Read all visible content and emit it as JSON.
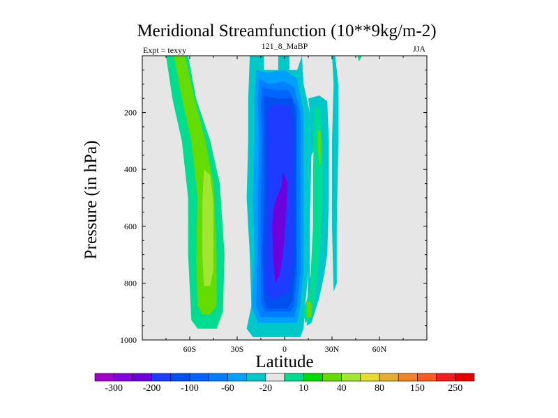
{
  "chart_data": {
    "type": "contour",
    "title": "Meridional Streamfunction (10**9kg/m-2)",
    "left_label": "Expt = texyy",
    "center_label": "121_8_MaBP",
    "right_label": "JJA",
    "xlabel": "Latitude",
    "ylabel": "Pressure (in hPa)",
    "xlim": [
      -90,
      90
    ],
    "ylim": [
      1000,
      0
    ],
    "x_ticks": [
      {
        "value": -60,
        "label": "60S"
      },
      {
        "value": -30,
        "label": "30S"
      },
      {
        "value": 0,
        "label": "0"
      },
      {
        "value": 30,
        "label": "30N"
      },
      {
        "value": 60,
        "label": "60N"
      }
    ],
    "y_ticks": [
      {
        "value": 200,
        "label": "200"
      },
      {
        "value": 400,
        "label": "400"
      },
      {
        "value": 600,
        "label": "600"
      },
      {
        "value": 800,
        "label": "800"
      },
      {
        "value": 1000,
        "label": "1000"
      }
    ],
    "colorbar": {
      "colors": [
        "#a000c8",
        "#8200dc",
        "#6e00dc",
        "#1e3cff",
        "#0050f0",
        "#0064ff",
        "#0080ff",
        "#00a0ff",
        "#00c8c8",
        "#e6e6e6",
        "#00dc90",
        "#00dc00",
        "#64dc00",
        "#a0e632",
        "#e6dc32",
        "#e6af2d",
        "#f08228",
        "#fa5a1e",
        "#f01e1e",
        "#e60000"
      ],
      "tick_labels": [
        "-300",
        "-200",
        "-100",
        "-60",
        "-20",
        "10",
        "40",
        "80",
        "150",
        "250"
      ]
    },
    "regions": [
      {
        "level": 40,
        "color": "#00dc90",
        "points": [
          [
            -75,
            0
          ],
          [
            -61,
            0
          ],
          [
            -56,
            150
          ],
          [
            -47,
            300
          ],
          [
            -41,
            450
          ],
          [
            -38,
            700
          ],
          [
            -39,
            900
          ],
          [
            -43,
            960
          ],
          [
            -55,
            960
          ],
          [
            -59,
            930
          ],
          [
            -61,
            700
          ],
          [
            -61,
            500
          ],
          [
            -65,
            300
          ],
          [
            -71,
            150
          ]
        ]
      },
      {
        "level": 80,
        "color": "#64dc00",
        "points": [
          [
            -70,
            0
          ],
          [
            -63,
            0
          ],
          [
            -57,
            150
          ],
          [
            -50,
            300
          ],
          [
            -45,
            450
          ],
          [
            -43,
            700
          ],
          [
            -43,
            880
          ],
          [
            -47,
            910
          ],
          [
            -52,
            910
          ],
          [
            -55,
            880
          ],
          [
            -56,
            700
          ],
          [
            -55,
            500
          ],
          [
            -59,
            300
          ],
          [
            -65,
            150
          ]
        ]
      },
      {
        "level": 150,
        "color": "#a0e632",
        "points": [
          [
            -51,
            400
          ],
          [
            -47,
            420
          ],
          [
            -45,
            520
          ],
          [
            -45,
            750
          ],
          [
            -47,
            810
          ],
          [
            -51,
            810
          ],
          [
            -52,
            700
          ],
          [
            -52,
            520
          ]
        ]
      },
      {
        "level": -20,
        "color": "#00c8c8",
        "points": [
          [
            -22,
            0
          ],
          [
            -13,
            0
          ],
          [
            -13,
            50
          ],
          [
            -4,
            50
          ],
          [
            -4,
            0
          ],
          [
            3,
            0
          ],
          [
            3,
            50
          ],
          [
            8,
            50
          ],
          [
            11,
            0
          ],
          [
            12,
            100
          ],
          [
            16,
            200
          ],
          [
            15,
            450
          ],
          [
            15,
            760
          ],
          [
            13,
            880
          ],
          [
            12,
            960
          ],
          [
            10,
            990
          ],
          [
            -20,
            990
          ],
          [
            -24,
            960
          ],
          [
            -21,
            880
          ],
          [
            -22,
            700
          ],
          [
            -24,
            500
          ],
          [
            -23,
            300
          ],
          [
            -23,
            150
          ]
        ]
      },
      {
        "level": -60,
        "color": "#00a0ff",
        "points": [
          [
            -18,
            50
          ],
          [
            -11,
            60
          ],
          [
            0,
            50
          ],
          [
            8,
            80
          ],
          [
            12,
            200
          ],
          [
            12,
            450
          ],
          [
            12,
            760
          ],
          [
            10,
            880
          ],
          [
            8,
            940
          ],
          [
            -17,
            940
          ],
          [
            -21,
            880
          ],
          [
            -19,
            700
          ],
          [
            -20,
            500
          ],
          [
            -19,
            300
          ],
          [
            -19,
            150
          ]
        ]
      },
      {
        "level": -100,
        "color": "#0080ff",
        "points": [
          [
            -16,
            80
          ],
          [
            -10,
            100
          ],
          [
            0,
            90
          ],
          [
            6,
            110
          ],
          [
            10,
            200
          ],
          [
            10,
            450
          ],
          [
            10,
            760
          ],
          [
            8,
            880
          ],
          [
            6,
            920
          ],
          [
            -15,
            920
          ],
          [
            -18,
            880
          ],
          [
            -17,
            700
          ],
          [
            -17,
            500
          ],
          [
            -16,
            300
          ],
          [
            -17,
            150
          ]
        ]
      },
      {
        "level": -140,
        "color": "#0064ff",
        "points": [
          [
            -14,
            110
          ],
          [
            -6,
            120
          ],
          [
            2,
            120
          ],
          [
            8,
            180
          ],
          [
            8,
            450
          ],
          [
            8,
            760
          ],
          [
            6,
            880
          ],
          [
            4,
            900
          ],
          [
            -12,
            900
          ],
          [
            -15,
            870
          ],
          [
            -15,
            700
          ],
          [
            -15,
            500
          ],
          [
            -14,
            300
          ],
          [
            -15,
            180
          ]
        ]
      },
      {
        "level": -180,
        "color": "#0050f0",
        "points": [
          [
            -13,
            140
          ],
          [
            -5,
            150
          ],
          [
            5,
            150
          ],
          [
            7,
            200
          ],
          [
            7,
            450
          ],
          [
            7,
            750
          ],
          [
            5,
            860
          ],
          [
            2,
            890
          ],
          [
            -11,
            890
          ],
          [
            -13,
            860
          ],
          [
            -14,
            700
          ],
          [
            -13,
            500
          ],
          [
            -13,
            300
          ],
          [
            -13,
            200
          ]
        ]
      },
      {
        "level": -220,
        "color": "#1e3cff",
        "points": [
          [
            -10,
            180
          ],
          [
            -3,
            170
          ],
          [
            4,
            180
          ],
          [
            5,
            250
          ],
          [
            5,
            500
          ],
          [
            5,
            740
          ],
          [
            3,
            830
          ],
          [
            -8,
            860
          ],
          [
            -12,
            830
          ],
          [
            -12,
            700
          ],
          [
            -11,
            500
          ],
          [
            -11,
            300
          ],
          [
            -11,
            220
          ]
        ]
      },
      {
        "level": -260,
        "color": "#6e00dc",
        "points": [
          [
            -1,
            410
          ],
          [
            2,
            450
          ],
          [
            1,
            550
          ],
          [
            -1,
            700
          ],
          [
            -3,
            770
          ],
          [
            -6,
            800
          ],
          [
            -7,
            720
          ],
          [
            -8,
            600
          ],
          [
            -7,
            540
          ],
          [
            -5,
            500
          ],
          [
            -2,
            460
          ]
        ]
      },
      {
        "level": -20,
        "color": "#00c8c8",
        "points": [
          [
            15,
            150
          ],
          [
            22,
            140
          ],
          [
            27,
            160
          ],
          [
            28,
            300
          ],
          [
            28,
            500
          ],
          [
            27,
            700
          ],
          [
            25,
            770
          ],
          [
            22,
            850
          ],
          [
            17,
            940
          ],
          [
            14,
            950
          ],
          [
            15,
            760
          ],
          [
            15,
            450
          ],
          [
            16,
            200
          ]
        ]
      },
      {
        "level": 10,
        "color": "#e6e6e6",
        "points": [
          [
            17,
            350
          ],
          [
            20,
            320
          ],
          [
            22,
            320
          ],
          [
            22,
            420
          ],
          [
            21,
            560
          ],
          [
            20,
            720
          ],
          [
            18,
            780
          ],
          [
            16,
            780
          ],
          [
            16,
            560
          ]
        ]
      },
      {
        "level": 40,
        "color": "#00dc90",
        "points": [
          [
            19,
            180
          ],
          [
            22,
            180
          ],
          [
            24,
            300
          ],
          [
            24,
            500
          ],
          [
            23,
            650
          ],
          [
            21,
            760
          ],
          [
            19,
            860
          ],
          [
            17,
            920
          ],
          [
            13,
            940
          ],
          [
            12,
            900
          ],
          [
            16,
            820
          ],
          [
            18,
            600
          ],
          [
            18,
            400
          ]
        ]
      },
      {
        "level": 80,
        "color": "#64dc00",
        "points": [
          [
            21,
            260
          ],
          [
            23,
            270
          ],
          [
            23,
            380
          ],
          [
            22,
            380
          ],
          [
            21,
            320
          ]
        ]
      },
      {
        "level": 80,
        "color": "#64dc00",
        "points": [
          [
            14,
            860
          ],
          [
            17,
            870
          ],
          [
            17,
            920
          ],
          [
            14,
            920
          ]
        ]
      },
      {
        "level": -20,
        "color": "#00c8c8",
        "points": [
          [
            30,
            0
          ],
          [
            32,
            0
          ],
          [
            34,
            100
          ],
          [
            34,
            300
          ],
          [
            33,
            600
          ],
          [
            33,
            800
          ],
          [
            31,
            830
          ],
          [
            30,
            600
          ],
          [
            30,
            300
          ],
          [
            31,
            100
          ]
        ]
      },
      {
        "level": 40,
        "color": "#00dc90",
        "points": [
          [
            46,
            0
          ],
          [
            49,
            0
          ],
          [
            47,
            20
          ]
        ]
      }
    ]
  }
}
